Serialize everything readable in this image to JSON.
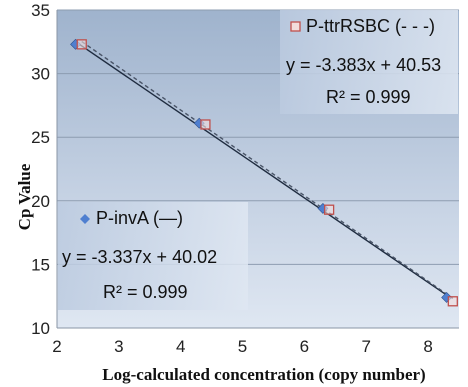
{
  "chart_data": {
    "type": "scatter",
    "xlabel": "Log-calculated concentration (copy number)",
    "ylabel": "Cp Value",
    "xlim": [
      2,
      8.5
    ],
    "ylim": [
      10,
      35
    ],
    "x_ticks": [
      "2",
      "3",
      "4",
      "5",
      "6",
      "7",
      "8"
    ],
    "y_ticks": [
      "10",
      "15",
      "20",
      "25",
      "30",
      "35"
    ],
    "grid": "horizontal",
    "series": [
      {
        "name": "P-invA (—)",
        "marker": "diamond",
        "color": "#4f7fd0",
        "line_style": "solid",
        "x": [
          2.3,
          4.3,
          6.3,
          8.3
        ],
        "y": [
          32.3,
          26.1,
          19.4,
          12.4
        ],
        "equation": "y = -3.337x + 40.02",
        "r2": "R² = 0.999"
      },
      {
        "name": "P-ttrRSBC (- - -)",
        "marker": "square",
        "color": "#c0504d",
        "line_style": "dashed",
        "x": [
          2.4,
          4.4,
          6.4,
          8.4
        ],
        "y": [
          32.3,
          26.0,
          19.3,
          12.1
        ],
        "equation": "y = -3.383x + 40.53",
        "r2": "R² = 0.999"
      }
    ]
  }
}
